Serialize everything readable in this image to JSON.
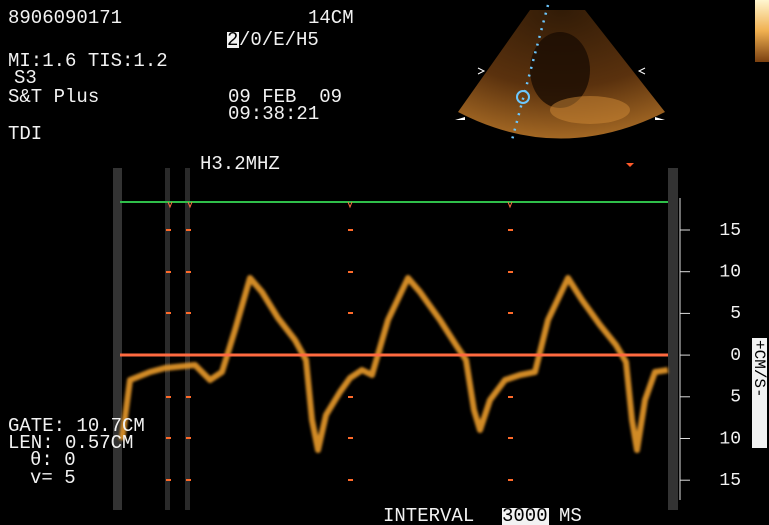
{
  "header": {
    "id": "8906090171",
    "depth": "14CM",
    "mode_index": "2",
    "mode": "/0/E/H5",
    "mi_tis": "MI:1.6 TIS:1.2",
    "preset": "S3",
    "app": "S&T Plus",
    "date": "09 FEB  09",
    "time": "09:38:21",
    "tdi": "TDI"
  },
  "doppler": {
    "frequency": "H3.2MHZ",
    "scale": {
      "labels": [
        "15",
        "10",
        "5",
        "0",
        "5",
        "10",
        "15"
      ],
      "unit_plus": "+",
      "unit": "CM/S",
      "unit_minus": "-"
    }
  },
  "gate": {
    "gate": "GATE: 10.7CM",
    "len": "LEN: 0.57CM",
    "theta": "θ: 0",
    "v": "v= 5"
  },
  "footer": {
    "label": "INTERVAL",
    "value": "3000",
    "unit": "MS"
  }
}
